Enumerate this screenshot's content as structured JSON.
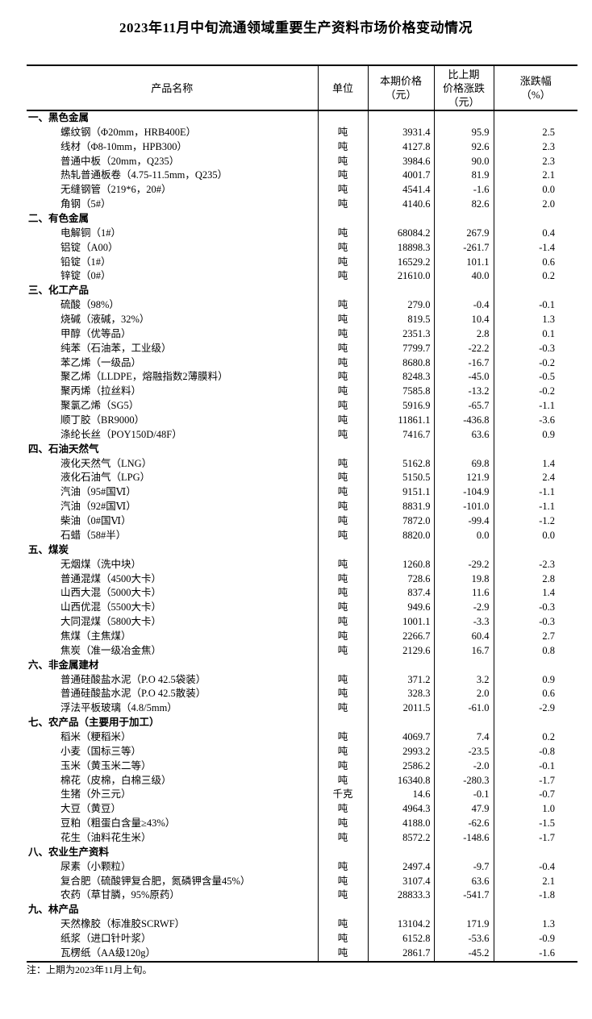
{
  "title": "2023年11月中旬流通领域重要生产资料市场价格变动情况",
  "note": "注：上期为2023年11月上旬。",
  "table": {
    "headers": [
      {
        "id": "product",
        "lines": [
          "产品名称"
        ]
      },
      {
        "id": "unit",
        "lines": [
          "单位"
        ]
      },
      {
        "id": "price",
        "lines": [
          "本期价格",
          "（元）"
        ]
      },
      {
        "id": "change",
        "lines": [
          "比上期",
          "价格涨跌",
          "（元）"
        ]
      },
      {
        "id": "pct",
        "lines": [
          "涨跌幅",
          "（%）"
        ]
      }
    ],
    "sections": [
      {
        "category": "一、黑色金属",
        "items": [
          {
            "name": "螺纹钢（Φ20mm，HRB400E）",
            "unit": "吨",
            "price": "3931.4",
            "change": "95.9",
            "pct": "2.5"
          },
          {
            "name": "线材（Φ8-10mm，HPB300）",
            "unit": "吨",
            "price": "4127.8",
            "change": "92.6",
            "pct": "2.3"
          },
          {
            "name": "普通中板（20mm，Q235）",
            "unit": "吨",
            "price": "3984.6",
            "change": "90.0",
            "pct": "2.3"
          },
          {
            "name": "热轧普通板卷（4.75-11.5mm，Q235）",
            "unit": "吨",
            "price": "4001.7",
            "change": "81.9",
            "pct": "2.1"
          },
          {
            "name": "无缝钢管（219*6，20#）",
            "unit": "吨",
            "price": "4541.4",
            "change": "-1.6",
            "pct": "0.0"
          },
          {
            "name": "角钢（5#）",
            "unit": "吨",
            "price": "4140.6",
            "change": "82.6",
            "pct": "2.0"
          }
        ]
      },
      {
        "category": "二、有色金属",
        "items": [
          {
            "name": "电解铜（1#）",
            "unit": "吨",
            "price": "68084.2",
            "change": "267.9",
            "pct": "0.4"
          },
          {
            "name": "铝锭（A00）",
            "unit": "吨",
            "price": "18898.3",
            "change": "-261.7",
            "pct": "-1.4"
          },
          {
            "name": "铅锭（1#）",
            "unit": "吨",
            "price": "16529.2",
            "change": "101.1",
            "pct": "0.6"
          },
          {
            "name": "锌锭（0#）",
            "unit": "吨",
            "price": "21610.0",
            "change": "40.0",
            "pct": "0.2"
          }
        ]
      },
      {
        "category": "三、化工产品",
        "items": [
          {
            "name": "硫酸（98%）",
            "unit": "吨",
            "price": "279.0",
            "change": "-0.4",
            "pct": "-0.1"
          },
          {
            "name": "烧碱（液碱，32%）",
            "unit": "吨",
            "price": "819.5",
            "change": "10.4",
            "pct": "1.3"
          },
          {
            "name": "甲醇（优等品）",
            "unit": "吨",
            "price": "2351.3",
            "change": "2.8",
            "pct": "0.1"
          },
          {
            "name": "纯苯（石油苯，工业级）",
            "unit": "吨",
            "price": "7799.7",
            "change": "-22.2",
            "pct": "-0.3"
          },
          {
            "name": "苯乙烯（一级品）",
            "unit": "吨",
            "price": "8680.8",
            "change": "-16.7",
            "pct": "-0.2"
          },
          {
            "name": "聚乙烯（LLDPE，熔融指数2薄膜料）",
            "unit": "吨",
            "price": "8248.3",
            "change": "-45.0",
            "pct": "-0.5"
          },
          {
            "name": "聚丙烯（拉丝料）",
            "unit": "吨",
            "price": "7585.8",
            "change": "-13.2",
            "pct": "-0.2"
          },
          {
            "name": "聚氯乙烯（SG5）",
            "unit": "吨",
            "price": "5916.9",
            "change": "-65.7",
            "pct": "-1.1"
          },
          {
            "name": "顺丁胶（BR9000）",
            "unit": "吨",
            "price": "11861.1",
            "change": "-436.8",
            "pct": "-3.6"
          },
          {
            "name": "涤纶长丝（POY150D/48F）",
            "unit": "吨",
            "price": "7416.7",
            "change": "63.6",
            "pct": "0.9"
          }
        ]
      },
      {
        "category": "四、石油天然气",
        "items": [
          {
            "name": "液化天然气（LNG）",
            "unit": "吨",
            "price": "5162.8",
            "change": "69.8",
            "pct": "1.4"
          },
          {
            "name": "液化石油气（LPG）",
            "unit": "吨",
            "price": "5150.5",
            "change": "121.9",
            "pct": "2.4"
          },
          {
            "name": "汽油（95#国Ⅵ）",
            "unit": "吨",
            "price": "9151.1",
            "change": "-104.9",
            "pct": "-1.1"
          },
          {
            "name": "汽油（92#国Ⅵ）",
            "unit": "吨",
            "price": "8831.9",
            "change": "-101.0",
            "pct": "-1.1"
          },
          {
            "name": "柴油（0#国Ⅵ）",
            "unit": "吨",
            "price": "7872.0",
            "change": "-99.4",
            "pct": "-1.2"
          },
          {
            "name": "石蜡（58#半）",
            "unit": "吨",
            "price": "8820.0",
            "change": "0.0",
            "pct": "0.0"
          }
        ]
      },
      {
        "category": "五、煤炭",
        "items": [
          {
            "name": "无烟煤（洗中块）",
            "unit": "吨",
            "price": "1260.8",
            "change": "-29.2",
            "pct": "-2.3"
          },
          {
            "name": "普通混煤（4500大卡）",
            "unit": "吨",
            "price": "728.6",
            "change": "19.8",
            "pct": "2.8"
          },
          {
            "name": "山西大混（5000大卡）",
            "unit": "吨",
            "price": "837.4",
            "change": "11.6",
            "pct": "1.4"
          },
          {
            "name": "山西优混（5500大卡）",
            "unit": "吨",
            "price": "949.6",
            "change": "-2.9",
            "pct": "-0.3"
          },
          {
            "name": "大同混煤（5800大卡）",
            "unit": "吨",
            "price": "1001.1",
            "change": "-3.3",
            "pct": "-0.3"
          },
          {
            "name": "焦煤（主焦煤）",
            "unit": "吨",
            "price": "2266.7",
            "change": "60.4",
            "pct": "2.7"
          },
          {
            "name": "焦炭（准一级冶金焦）",
            "unit": "吨",
            "price": "2129.6",
            "change": "16.7",
            "pct": "0.8"
          }
        ]
      },
      {
        "category": "六、非金属建材",
        "items": [
          {
            "name": "普通硅酸盐水泥（P.O 42.5袋装）",
            "unit": "吨",
            "price": "371.2",
            "change": "3.2",
            "pct": "0.9"
          },
          {
            "name": "普通硅酸盐水泥（P.O 42.5散装）",
            "unit": "吨",
            "price": "328.3",
            "change": "2.0",
            "pct": "0.6"
          },
          {
            "name": "浮法平板玻璃（4.8/5mm）",
            "unit": "吨",
            "price": "2011.5",
            "change": "-61.0",
            "pct": "-2.9"
          }
        ]
      },
      {
        "category": "七、农产品（主要用于加工）",
        "items": [
          {
            "name": "稻米（粳稻米）",
            "unit": "吨",
            "price": "4069.7",
            "change": "7.4",
            "pct": "0.2"
          },
          {
            "name": "小麦（国标三等）",
            "unit": "吨",
            "price": "2993.2",
            "change": "-23.5",
            "pct": "-0.8"
          },
          {
            "name": "玉米（黄玉米二等）",
            "unit": "吨",
            "price": "2586.2",
            "change": "-2.0",
            "pct": "-0.1"
          },
          {
            "name": "棉花（皮棉，白棉三级）",
            "unit": "吨",
            "price": "16340.8",
            "change": "-280.3",
            "pct": "-1.7"
          },
          {
            "name": "生猪（外三元）",
            "unit": "千克",
            "price": "14.6",
            "change": "-0.1",
            "pct": "-0.7"
          },
          {
            "name": "大豆（黄豆）",
            "unit": "吨",
            "price": "4964.3",
            "change": "47.9",
            "pct": "1.0"
          },
          {
            "name": "豆粕（粗蛋白含量≥43%）",
            "unit": "吨",
            "price": "4188.0",
            "change": "-62.6",
            "pct": "-1.5"
          },
          {
            "name": "花生（油料花生米）",
            "unit": "吨",
            "price": "8572.2",
            "change": "-148.6",
            "pct": "-1.7"
          }
        ]
      },
      {
        "category": "八、农业生产资料",
        "items": [
          {
            "name": "尿素（小颗粒）",
            "unit": "吨",
            "price": "2497.4",
            "change": "-9.7",
            "pct": "-0.4"
          },
          {
            "name": "复合肥（硫酸钾复合肥，氮磷钾含量45%）",
            "unit": "吨",
            "price": "3107.4",
            "change": "63.6",
            "pct": "2.1"
          },
          {
            "name": "农药（草甘膦，95%原药）",
            "unit": "吨",
            "price": "28833.3",
            "change": "-541.7",
            "pct": "-1.8"
          }
        ]
      },
      {
        "category": "九、林产品",
        "items": [
          {
            "name": "天然橡胶（标准胶SCRWF）",
            "unit": "吨",
            "price": "13104.2",
            "change": "171.9",
            "pct": "1.3"
          },
          {
            "name": "纸浆（进口针叶浆）",
            "unit": "吨",
            "price": "6152.8",
            "change": "-53.6",
            "pct": "-0.9"
          },
          {
            "name": "瓦楞纸（AA级120g）",
            "unit": "吨",
            "price": "2861.7",
            "change": "-45.2",
            "pct": "-1.6"
          }
        ]
      }
    ]
  }
}
